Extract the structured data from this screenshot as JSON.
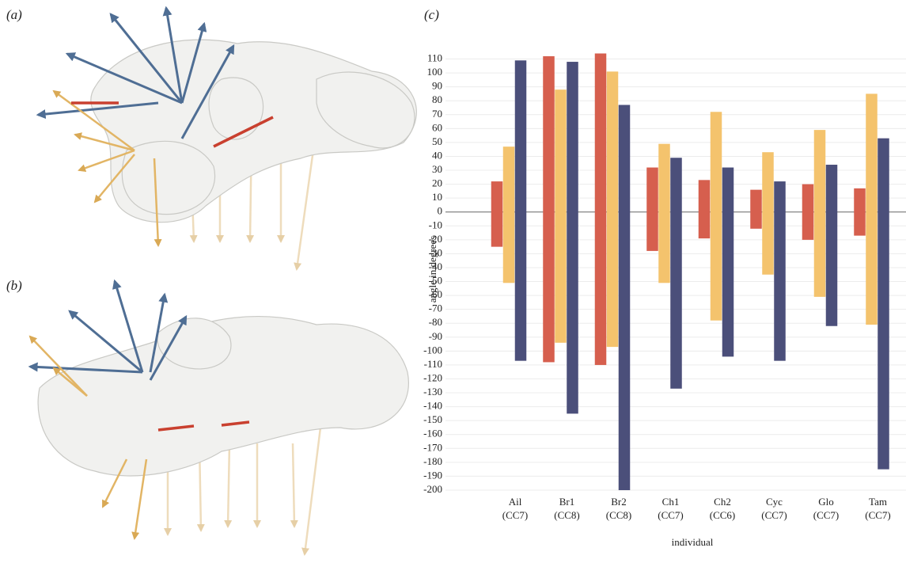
{
  "figure": {
    "panel_labels": [
      "(a)",
      "(b)"
    ]
  },
  "chart_data": {
    "type": "range-bar",
    "panel_label": "(c)",
    "y_label": "angle in degrees",
    "x_label": "individual",
    "categories": [
      "Ail",
      "Br1",
      "Br2",
      "Ch1",
      "Ch2",
      "Cyc",
      "Glo",
      "Tam"
    ],
    "group_labels": [
      "(CC7)",
      "(CC8)",
      "(CC8)",
      "(CC7)",
      "(CC6)",
      "(CC7)",
      "(CC7)",
      "(CC7)"
    ],
    "series": [
      {
        "color": "#d65f4e",
        "low": [
          -25,
          -108,
          -110,
          -28,
          -19,
          -12,
          -20,
          -17
        ],
        "high": [
          22,
          112,
          114,
          32,
          23,
          16,
          20,
          17
        ]
      },
      {
        "color": "#f4c36d",
        "low": [
          -51,
          -94,
          -97,
          -51,
          -78,
          -45,
          -61,
          -81
        ],
        "high": [
          47,
          88,
          101,
          49,
          72,
          43,
          59,
          85
        ]
      },
      {
        "color": "#4b4f7a",
        "low": [
          -107,
          -145,
          -200,
          -127,
          -104,
          -107,
          -82,
          -185
        ],
        "high": [
          109,
          108,
          77,
          39,
          32,
          22,
          34,
          53
        ]
      }
    ],
    "ylim": [
      -200,
      116
    ],
    "yticks": [
      -200,
      -190,
      -180,
      -170,
      -160,
      -150,
      -140,
      -130,
      -120,
      -110,
      -100,
      -90,
      -80,
      -70,
      -60,
      -50,
      -40,
      -30,
      -20,
      -10,
      0,
      10,
      20,
      30,
      40,
      50,
      60,
      70,
      80,
      90,
      100,
      110
    ],
    "grid": true
  }
}
